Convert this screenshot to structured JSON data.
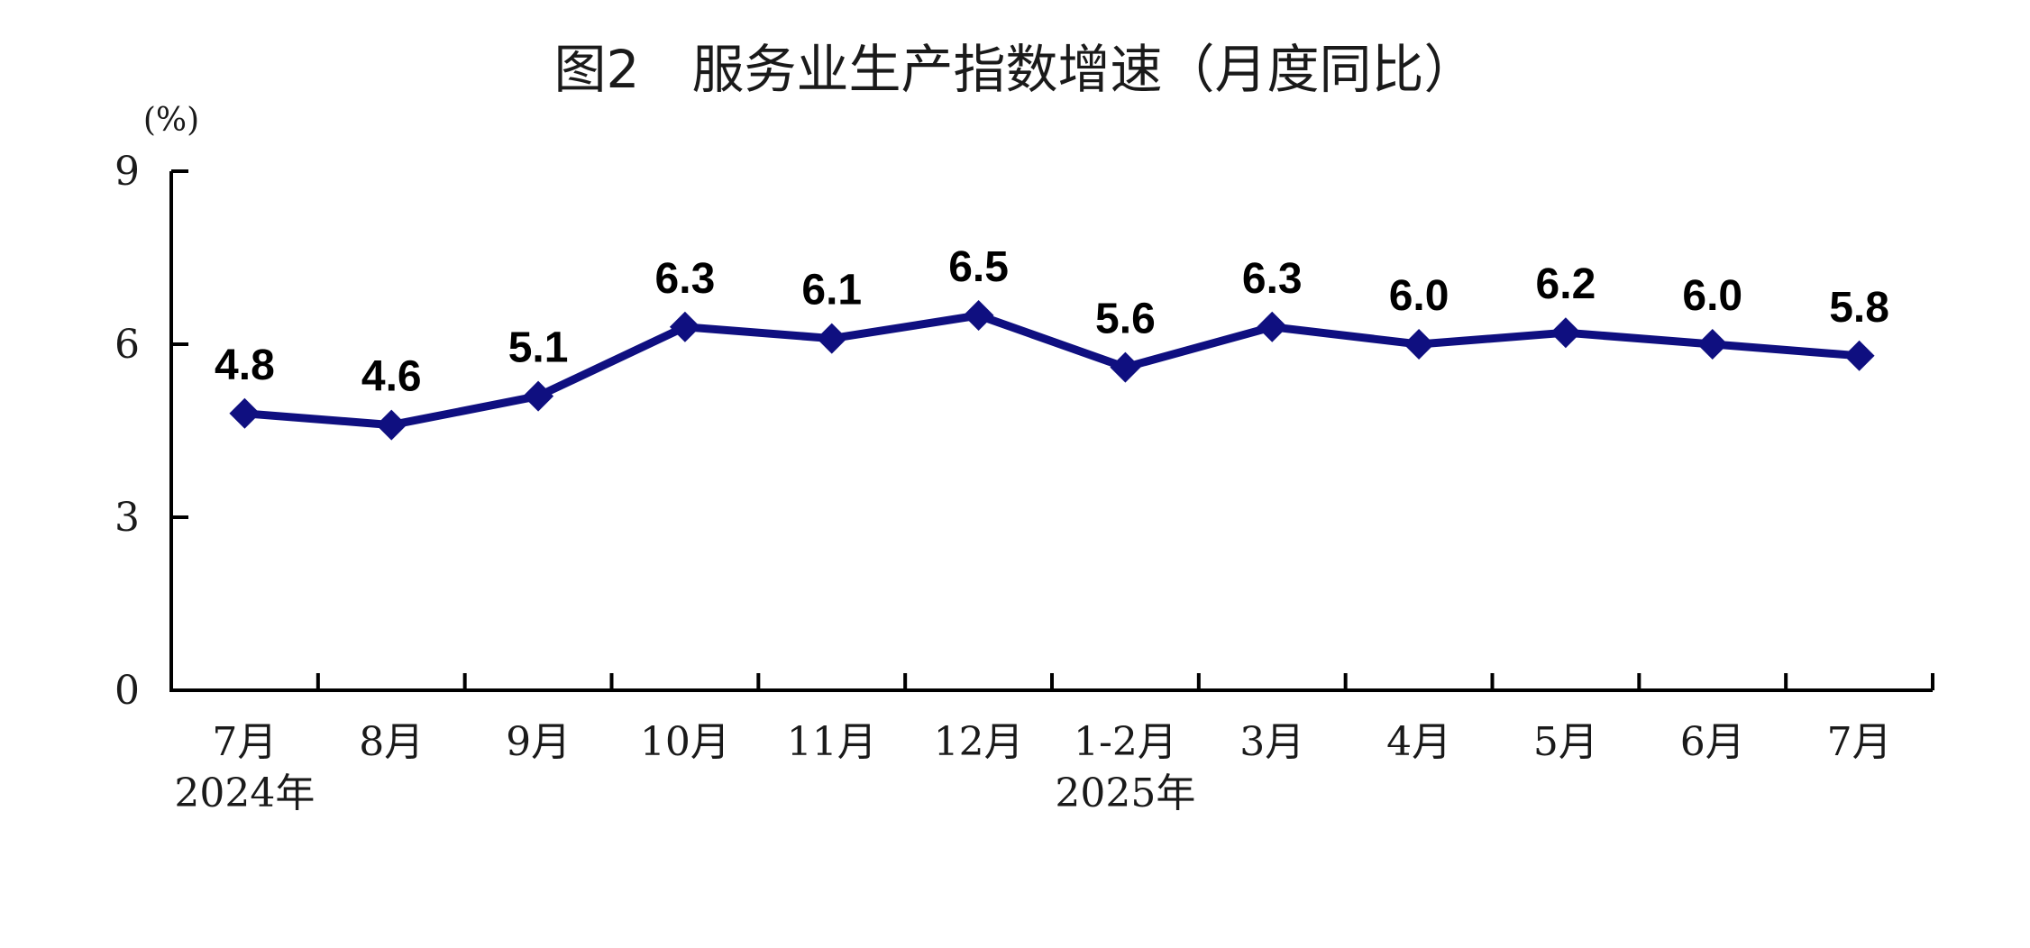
{
  "title": "图2　服务业生产指数增速（月度同比）",
  "unit": "(%)",
  "colors": {
    "series": "#0f0f80",
    "axis": "#000000",
    "text": "#1a1a1a"
  },
  "chart_data": {
    "type": "line",
    "title": "图2　服务业生产指数增速（月度同比）",
    "ylabel": "(%)",
    "xlabel": "",
    "ylim": [
      0,
      9
    ],
    "yticks": [
      0,
      3,
      6,
      9
    ],
    "grid": false,
    "legend": "none",
    "categories": [
      "7月",
      "8月",
      "9月",
      "10月",
      "11月",
      "12月",
      "1-2月",
      "3月",
      "4月",
      "5月",
      "6月",
      "7月"
    ],
    "year_labels": [
      {
        "text": "2024年",
        "category_index": 0
      },
      {
        "text": "2025年",
        "category_index": 6
      }
    ],
    "series": [
      {
        "color": "#0f0f80",
        "marker": "diamond",
        "values": [
          4.8,
          4.6,
          5.1,
          6.3,
          6.1,
          6.5,
          5.6,
          6.3,
          6.0,
          6.2,
          6.0,
          5.8
        ],
        "labels": [
          "4.8",
          "4.6",
          "5.1",
          "6.3",
          "6.1",
          "6.5",
          "5.6",
          "6.3",
          "6.0",
          "6.2",
          "6.0",
          "5.8"
        ]
      }
    ]
  }
}
